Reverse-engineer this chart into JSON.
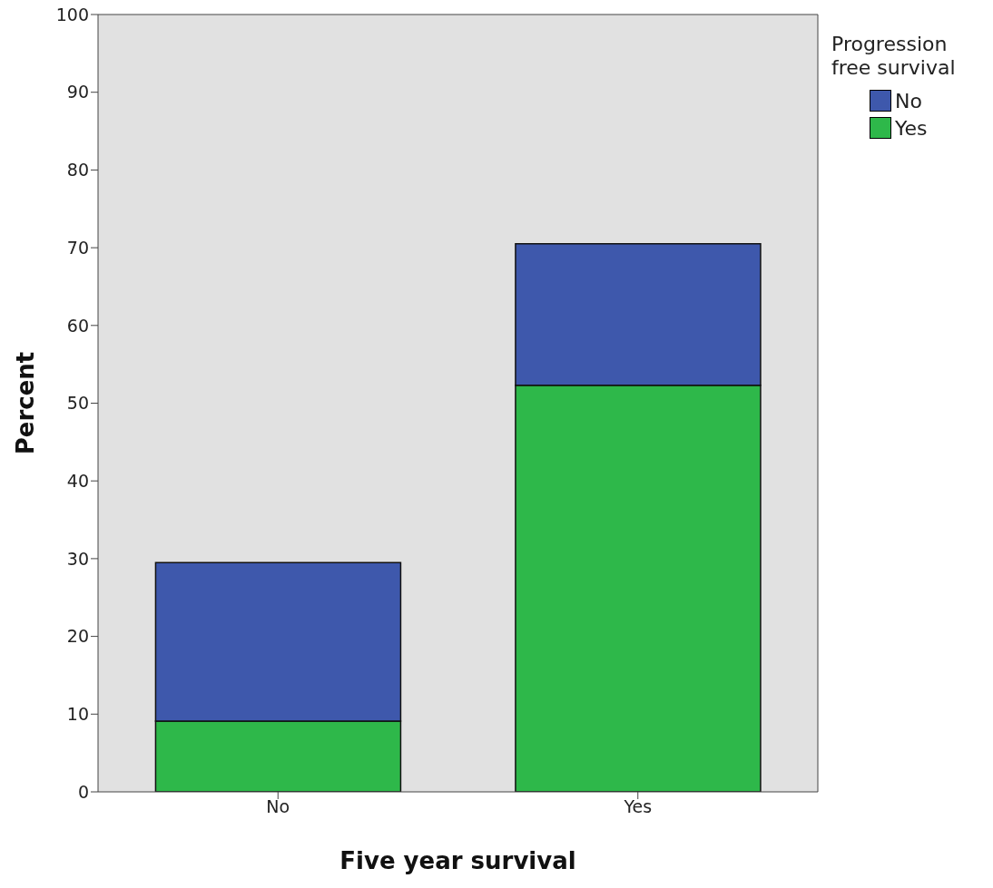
{
  "chart_data": {
    "type": "bar",
    "stacked": true,
    "xlabel": "Five year survival",
    "ylabel": "Percent",
    "legend_title": "Progression free survival",
    "legend": "top right",
    "categories": [
      "No",
      "Yes"
    ],
    "series": [
      {
        "name": "Yes",
        "color": "#2eb84a",
        "values": [
          9.1,
          52.3
        ]
      },
      {
        "name": "No",
        "color": "#3e58ac",
        "values": [
          20.4,
          18.2
        ]
      }
    ],
    "ylim": [
      0,
      100
    ],
    "yticks": [
      0,
      10,
      20,
      30,
      40,
      50,
      60,
      70,
      80,
      90,
      100
    ]
  }
}
